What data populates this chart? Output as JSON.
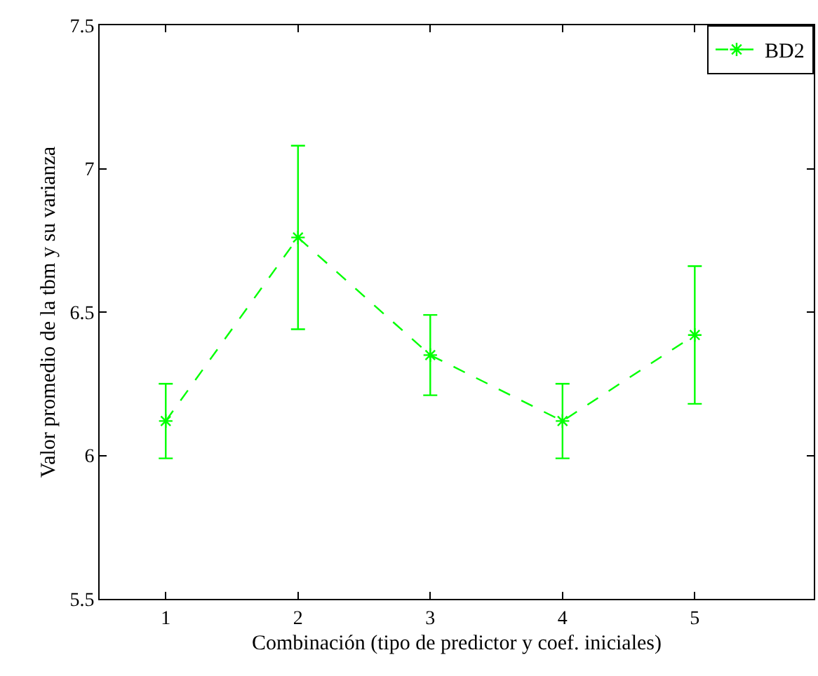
{
  "chart_data": {
    "type": "line",
    "xlabel": "Combinación (tipo de predictor y coef. iniciales)",
    "ylabel": "Valor promedio de la tbm y su varianza",
    "x": [
      1,
      2,
      3,
      4,
      5
    ],
    "series": [
      {
        "name": "BD2",
        "color": "#00ff00",
        "values": [
          6.12,
          6.76,
          6.35,
          6.12,
          6.42
        ],
        "errors": [
          [
            5.99,
            6.25
          ],
          [
            6.44,
            7.08
          ],
          [
            6.21,
            6.49
          ],
          [
            5.99,
            6.25
          ],
          [
            6.18,
            6.66
          ]
        ]
      }
    ],
    "xlim": [
      0.5,
      5.9
    ],
    "xticks": [
      1,
      2,
      3,
      4,
      5
    ],
    "ylim": [
      5.5,
      7.5
    ],
    "yticks": [
      5.5,
      6,
      6.5,
      7,
      7.5
    ],
    "legend": "top right",
    "marker": "cross",
    "line_style": "dashed"
  }
}
